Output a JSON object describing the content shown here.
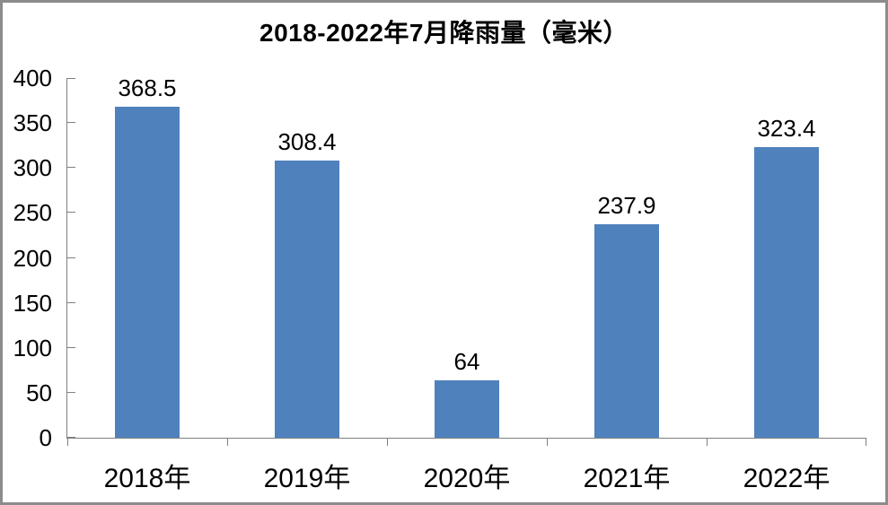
{
  "chart_data": {
    "type": "bar",
    "title": "2018-2022年7月降雨量（毫米）",
    "categories": [
      "2018年",
      "2019年",
      "2020年",
      "2021年",
      "2022年"
    ],
    "values": [
      368.5,
      308.4,
      64,
      237.9,
      323.4
    ],
    "data_labels": [
      "368.5",
      "308.4",
      "64",
      "237.9",
      "323.4"
    ],
    "xlabel": "",
    "ylabel": "",
    "ylim": [
      0,
      400
    ],
    "ytick_step": 50,
    "ytick_labels": [
      "0",
      "50",
      "100",
      "150",
      "200",
      "250",
      "300",
      "350",
      "400"
    ],
    "grid": false,
    "legend": false,
    "bar_color": "#4F81BD",
    "axis_color": "#808080",
    "frame_color": "#8C8C8C",
    "text_color": "#000000"
  }
}
